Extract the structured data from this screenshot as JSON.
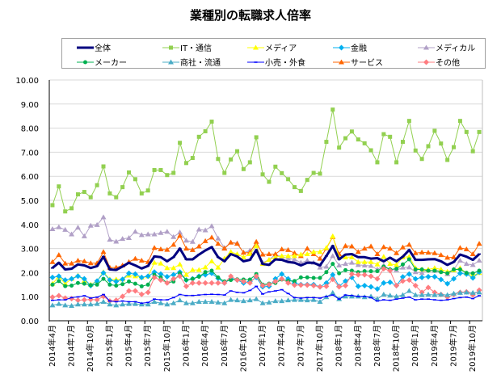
{
  "chart_data": {
    "type": "line",
    "title": "業種別の転職求人倍率",
    "xlabel": "",
    "ylabel": "",
    "ylim": [
      0,
      10
    ],
    "y_ticks": [
      "0.00",
      "1.00",
      "2.00",
      "3.00",
      "4.00",
      "5.00",
      "6.00",
      "7.00",
      "8.00",
      "9.00",
      "10.00"
    ],
    "x_tick_labels": [
      "2014年4月",
      "2014年7月",
      "2014年10月",
      "2015年1月",
      "2015年4月",
      "2015年7月",
      "2015年10月",
      "2016年1月",
      "2016年4月",
      "2016年7月",
      "2016年10月",
      "2017年1月",
      "2017年4月",
      "2017年7月",
      "2017年10月",
      "2018年1月",
      "2018年4月",
      "2018年7月",
      "2018年10月",
      "2019年1月",
      "2019年4月",
      "2019年7月",
      "2019年10月"
    ],
    "x_tick_every": 3,
    "point_count": 68,
    "grid": true,
    "legend_position": "top",
    "series": [
      {
        "name": "全体",
        "color": "#000080",
        "marker": "dash",
        "width": 3,
        "values": [
          2.19,
          2.41,
          2.13,
          2.16,
          2.34,
          2.3,
          2.19,
          2.27,
          2.66,
          2.13,
          2.11,
          2.25,
          2.41,
          2.3,
          2.17,
          2.28,
          2.67,
          2.64,
          2.47,
          2.64,
          3.0,
          2.55,
          2.55,
          2.75,
          2.92,
          3.06,
          2.64,
          2.47,
          2.77,
          2.67,
          2.47,
          2.53,
          2.94,
          2.36,
          2.32,
          2.55,
          2.53,
          2.44,
          2.41,
          2.3,
          2.41,
          2.41,
          2.3,
          2.69,
          3.11,
          2.55,
          2.75,
          2.77,
          2.64,
          2.64,
          2.58,
          2.6,
          2.47,
          2.62,
          2.47,
          2.66,
          2.94,
          2.53,
          2.53,
          2.55,
          2.56,
          2.47,
          2.32,
          2.44,
          2.75,
          2.66,
          2.53,
          2.77
        ]
      },
      {
        "name": "IT・通信",
        "color": "#92D050",
        "marker": "square",
        "width": 1,
        "values": [
          4.8,
          5.58,
          4.54,
          4.67,
          5.25,
          5.35,
          5.13,
          5.63,
          6.41,
          5.29,
          5.13,
          5.55,
          6.16,
          5.88,
          5.29,
          5.41,
          6.26,
          6.26,
          6.05,
          6.14,
          7.39,
          6.55,
          6.76,
          7.64,
          7.87,
          8.27,
          6.72,
          6.14,
          6.7,
          7.04,
          6.3,
          6.58,
          7.62,
          6.08,
          5.77,
          6.4,
          6.13,
          5.88,
          5.55,
          5.39,
          5.85,
          6.14,
          6.11,
          7.43,
          8.77,
          7.19,
          7.58,
          7.86,
          7.53,
          7.37,
          7.08,
          6.58,
          7.75,
          7.64,
          6.58,
          7.43,
          8.3,
          7.07,
          6.72,
          7.25,
          7.89,
          7.36,
          6.68,
          7.21,
          8.3,
          7.84,
          7.04,
          7.84
        ]
      },
      {
        "name": "メディア",
        "color": "#FFFF00",
        "marker": "triangle",
        "width": 1,
        "values": [
          1.54,
          1.83,
          1.54,
          1.74,
          1.88,
          1.66,
          1.5,
          1.65,
          2.02,
          1.72,
          1.72,
          1.72,
          1.88,
          1.85,
          1.8,
          1.85,
          2.41,
          2.38,
          2.19,
          2.19,
          2.34,
          1.91,
          2.11,
          2.11,
          2.22,
          2.47,
          2.21,
          2.58,
          2.86,
          2.77,
          2.64,
          2.77,
          3.11,
          2.36,
          2.53,
          2.64,
          2.69,
          2.69,
          2.69,
          2.75,
          2.77,
          2.86,
          2.86,
          3.03,
          3.51,
          2.64,
          2.64,
          2.64,
          2.44,
          2.44,
          2.44,
          2.34,
          2.66,
          2.36,
          2.32,
          2.64,
          2.66,
          2.19,
          2.13,
          2.13,
          2.19,
          2.13,
          2.04,
          2.1,
          2.19,
          1.97,
          1.88,
          1.99
        ]
      },
      {
        "name": "金融",
        "color": "#00B0F0",
        "marker": "diamond",
        "width": 1,
        "values": [
          1.8,
          1.85,
          1.69,
          1.74,
          1.85,
          1.74,
          1.46,
          1.65,
          1.99,
          1.69,
          1.63,
          1.72,
          1.97,
          1.94,
          1.8,
          1.85,
          2.02,
          1.94,
          1.83,
          1.91,
          2.02,
          1.69,
          1.74,
          1.85,
          1.91,
          1.97,
          1.76,
          1.57,
          1.74,
          1.69,
          1.57,
          1.63,
          1.8,
          1.41,
          1.43,
          1.74,
          1.94,
          1.74,
          1.57,
          1.5,
          1.5,
          1.5,
          1.41,
          1.57,
          1.91,
          1.43,
          1.65,
          1.8,
          1.43,
          1.46,
          1.41,
          1.32,
          1.57,
          1.6,
          1.46,
          1.82,
          1.94,
          1.74,
          1.8,
          1.83,
          1.83,
          1.71,
          1.54,
          1.74,
          1.97,
          1.94,
          1.78,
          2.02
        ]
      },
      {
        "name": "メディカル",
        "color": "#B1A0C7",
        "marker": "triangle",
        "width": 1,
        "values": [
          3.81,
          3.89,
          3.78,
          3.59,
          3.87,
          3.51,
          3.95,
          3.98,
          4.3,
          3.37,
          3.29,
          3.4,
          3.44,
          3.7,
          3.56,
          3.59,
          3.59,
          3.65,
          3.7,
          3.48,
          3.67,
          3.33,
          3.28,
          3.79,
          3.76,
          3.93,
          3.42,
          3.03,
          3.25,
          3.22,
          2.83,
          2.92,
          3.14,
          2.41,
          2.53,
          2.75,
          2.66,
          2.58,
          2.55,
          2.41,
          2.5,
          2.41,
          2.21,
          2.25,
          2.69,
          2.3,
          2.36,
          2.41,
          2.32,
          2.3,
          2.28,
          2.13,
          2.3,
          2.13,
          2.1,
          2.21,
          2.22,
          2.02,
          1.99,
          2.1,
          2.08,
          2.08,
          1.94,
          2.13,
          2.5,
          2.36,
          2.32,
          2.5
        ]
      },
      {
        "name": "メーカー",
        "color": "#00B050",
        "marker": "circle",
        "width": 1,
        "values": [
          1.5,
          1.65,
          1.44,
          1.46,
          1.57,
          1.54,
          1.48,
          1.5,
          1.74,
          1.5,
          1.46,
          1.52,
          1.63,
          1.54,
          1.43,
          1.5,
          1.91,
          1.8,
          1.57,
          1.63,
          1.97,
          1.69,
          1.74,
          1.83,
          2.02,
          2.08,
          1.8,
          1.63,
          1.69,
          1.72,
          1.71,
          1.71,
          1.94,
          1.5,
          1.54,
          1.57,
          1.71,
          1.65,
          1.65,
          1.8,
          1.8,
          1.78,
          1.78,
          2.02,
          2.36,
          1.97,
          2.1,
          2.08,
          2.02,
          2.06,
          2.06,
          2.06,
          2.25,
          2.13,
          2.16,
          2.34,
          2.55,
          2.13,
          2.13,
          2.08,
          2.08,
          2.02,
          1.97,
          2.13,
          2.13,
          1.99,
          1.97,
          2.08
        ]
      },
      {
        "name": "商社・流通",
        "color": "#4BACC6",
        "marker": "triangle",
        "width": 1,
        "values": [
          0.64,
          0.7,
          0.64,
          0.62,
          0.68,
          0.68,
          0.68,
          0.7,
          0.79,
          0.68,
          0.64,
          0.68,
          0.7,
          0.7,
          0.68,
          0.68,
          0.79,
          0.73,
          0.68,
          0.73,
          0.85,
          0.73,
          0.73,
          0.79,
          0.79,
          0.79,
          0.76,
          0.73,
          0.87,
          0.85,
          0.82,
          0.85,
          0.9,
          0.73,
          0.76,
          0.82,
          0.82,
          0.85,
          0.87,
          0.87,
          0.85,
          0.87,
          0.79,
          0.98,
          1.16,
          0.9,
          1.01,
          1.01,
          1.01,
          0.98,
          1.01,
          0.9,
          1.09,
          1.05,
          1.01,
          1.07,
          1.24,
          1.07,
          1.07,
          1.09,
          1.07,
          1.09,
          1.07,
          1.13,
          1.16,
          1.18,
          1.16,
          1.18
        ]
      },
      {
        "name": "小売・外食",
        "color": "#0000FF",
        "marker": "dash",
        "width": 1,
        "values": [
          0.85,
          0.87,
          0.87,
          0.96,
          0.99,
          1.04,
          0.94,
          0.98,
          1.09,
          0.82,
          0.79,
          0.82,
          0.79,
          0.79,
          0.73,
          0.76,
          0.9,
          0.87,
          0.87,
          0.96,
          1.09,
          1.05,
          1.05,
          1.07,
          1.09,
          1.1,
          1.09,
          1.07,
          1.24,
          1.18,
          1.16,
          1.26,
          1.43,
          1.11,
          1.2,
          1.24,
          1.29,
          1.13,
          0.96,
          0.94,
          0.96,
          0.96,
          0.94,
          1.01,
          1.07,
          0.9,
          1.07,
          1.05,
          1.01,
          1.01,
          0.96,
          0.82,
          0.87,
          0.85,
          0.9,
          0.94,
          0.98,
          0.87,
          0.9,
          0.9,
          0.87,
          0.85,
          0.87,
          0.92,
          0.96,
          0.98,
          0.92,
          1.04
        ]
      },
      {
        "name": "サービス",
        "color": "#FF6600",
        "marker": "triangle",
        "width": 1,
        "values": [
          2.44,
          2.73,
          2.38,
          2.38,
          2.5,
          2.47,
          2.39,
          2.39,
          2.86,
          2.21,
          2.21,
          2.3,
          2.44,
          2.58,
          2.5,
          2.44,
          3.03,
          2.97,
          2.95,
          3.16,
          3.53,
          3.0,
          2.94,
          3.09,
          3.31,
          3.46,
          3.2,
          3.0,
          3.25,
          3.2,
          2.83,
          2.83,
          3.28,
          2.75,
          2.77,
          2.77,
          2.97,
          2.94,
          2.81,
          2.69,
          3.0,
          2.77,
          2.58,
          3.01,
          3.48,
          2.77,
          3.11,
          3.09,
          2.86,
          3.0,
          3.09,
          2.77,
          3.06,
          3.0,
          2.81,
          3.05,
          3.16,
          2.81,
          2.84,
          2.83,
          2.81,
          2.73,
          2.62,
          2.64,
          3.03,
          2.97,
          2.77,
          3.2
        ]
      },
      {
        "name": "その他",
        "color": "#FF7C80",
        "marker": "diamond",
        "width": 1,
        "values": [
          0.98,
          1.04,
          0.94,
          0.92,
          0.85,
          0.87,
          0.88,
          0.87,
          1.01,
          0.82,
          0.85,
          1.01,
          1.24,
          1.24,
          1.1,
          1.18,
          1.8,
          1.69,
          1.57,
          1.74,
          1.85,
          1.43,
          1.57,
          1.57,
          1.57,
          1.57,
          1.57,
          1.57,
          1.85,
          1.69,
          1.63,
          1.57,
          1.85,
          1.46,
          1.5,
          1.63,
          1.74,
          1.57,
          1.48,
          1.48,
          1.48,
          1.46,
          1.41,
          1.43,
          1.72,
          1.41,
          1.46,
          1.94,
          1.91,
          1.91,
          1.85,
          1.74,
          2.16,
          2.08,
          1.46,
          1.65,
          1.69,
          1.46,
          1.18,
          1.38,
          1.18,
          1.09,
          0.98,
          1.09,
          1.18,
          1.2,
          1.07,
          1.27
        ]
      }
    ]
  }
}
